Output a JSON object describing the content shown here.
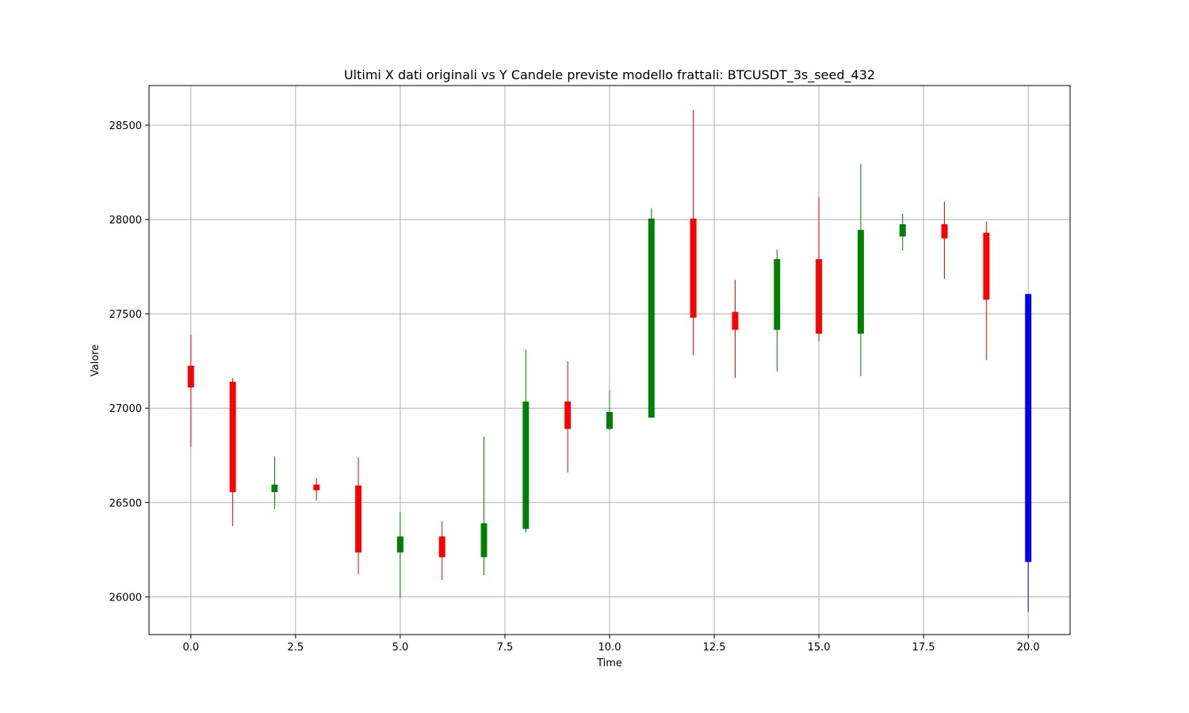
{
  "chart_data": {
    "type": "candlestick",
    "title": "Ultimi X dati originali vs Y Candele previste modello frattali: BTCUSDT_3s_seed_432",
    "xlabel": "Time",
    "ylabel": "Valore",
    "xlim": [
      -1.0,
      21.0
    ],
    "ylim": [
      25800,
      28710
    ],
    "x_ticks": [
      0.0,
      2.5,
      5.0,
      7.5,
      10.0,
      12.5,
      15.0,
      17.5,
      20.0
    ],
    "x_tick_labels": [
      "0.0",
      "2.5",
      "5.0",
      "7.5",
      "10.0",
      "12.5",
      "15.0",
      "17.5",
      "20.0"
    ],
    "y_ticks": [
      26000,
      26500,
      27000,
      27500,
      28000,
      28500
    ],
    "y_tick_labels": [
      "26000",
      "26500",
      "27000",
      "27500",
      "28000",
      "28500"
    ],
    "grid": true,
    "colors": {
      "up": "#008000",
      "down": "#ff0000",
      "predicted": "#0000ff"
    },
    "candles": [
      {
        "x": 0,
        "open": 27225,
        "high": 27390,
        "low": 26795,
        "close": 27110,
        "kind": "down"
      },
      {
        "x": 1,
        "open": 27140,
        "high": 27160,
        "low": 26375,
        "close": 26555,
        "kind": "down"
      },
      {
        "x": 2,
        "open": 26555,
        "high": 26745,
        "low": 26465,
        "close": 26595,
        "kind": "up"
      },
      {
        "x": 3,
        "open": 26595,
        "high": 26630,
        "low": 26510,
        "close": 26565,
        "kind": "down"
      },
      {
        "x": 4,
        "open": 26590,
        "high": 26740,
        "low": 26120,
        "close": 26235,
        "kind": "down"
      },
      {
        "x": 5,
        "open": 26235,
        "high": 26450,
        "low": 25995,
        "close": 26320,
        "kind": "up"
      },
      {
        "x": 6,
        "open": 26320,
        "high": 26400,
        "low": 26090,
        "close": 26210,
        "kind": "down"
      },
      {
        "x": 7,
        "open": 26210,
        "high": 26850,
        "low": 26115,
        "close": 26390,
        "kind": "up"
      },
      {
        "x": 8,
        "open": 26360,
        "high": 27310,
        "low": 26340,
        "close": 27035,
        "kind": "up"
      },
      {
        "x": 9,
        "open": 27035,
        "high": 27250,
        "low": 26660,
        "close": 26890,
        "kind": "down"
      },
      {
        "x": 10,
        "open": 26890,
        "high": 27095,
        "low": 26885,
        "close": 26980,
        "kind": "up"
      },
      {
        "x": 11,
        "open": 26950,
        "high": 28060,
        "low": 26950,
        "close": 28005,
        "kind": "up"
      },
      {
        "x": 12,
        "open": 28005,
        "high": 28580,
        "low": 27280,
        "close": 27480,
        "kind": "down"
      },
      {
        "x": 13,
        "open": 27510,
        "high": 27680,
        "low": 27160,
        "close": 27415,
        "kind": "down"
      },
      {
        "x": 14,
        "open": 27415,
        "high": 27840,
        "low": 27195,
        "close": 27790,
        "kind": "up"
      },
      {
        "x": 15,
        "open": 27790,
        "high": 28120,
        "low": 27355,
        "close": 27395,
        "kind": "down"
      },
      {
        "x": 16,
        "open": 27395,
        "high": 28295,
        "low": 27170,
        "close": 27945,
        "kind": "up"
      },
      {
        "x": 17,
        "open": 27910,
        "high": 28030,
        "low": 27835,
        "close": 27975,
        "kind": "up"
      },
      {
        "x": 18,
        "open": 27975,
        "high": 28095,
        "low": 27685,
        "close": 27900,
        "kind": "down"
      },
      {
        "x": 19,
        "open": 27930,
        "high": 27990,
        "low": 27255,
        "close": 27575,
        "kind": "down"
      },
      {
        "x": 20,
        "open": 27605,
        "high": 27605,
        "low": 25920,
        "close": 26185,
        "kind": "predicted"
      }
    ]
  }
}
